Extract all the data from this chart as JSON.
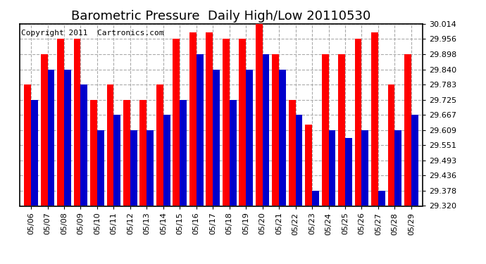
{
  "title": "Barometric Pressure  Daily High/Low 20110530",
  "copyright": "Copyright 2011  Cartronics.com",
  "dates": [
    "05/06",
    "05/07",
    "05/08",
    "05/09",
    "05/10",
    "05/11",
    "05/12",
    "05/13",
    "05/14",
    "05/15",
    "05/16",
    "05/17",
    "05/18",
    "05/19",
    "05/20",
    "05/21",
    "05/22",
    "05/23",
    "05/24",
    "05/25",
    "05/26",
    "05/27",
    "05/28",
    "05/29"
  ],
  "highs": [
    29.783,
    29.898,
    29.956,
    29.956,
    29.725,
    29.783,
    29.725,
    29.725,
    29.783,
    29.956,
    29.98,
    29.98,
    29.956,
    29.956,
    30.014,
    29.898,
    29.725,
    29.63,
    29.898,
    29.898,
    29.956,
    29.98,
    29.783,
    29.898
  ],
  "lows": [
    29.725,
    29.84,
    29.84,
    29.783,
    29.609,
    29.667,
    29.609,
    29.609,
    29.667,
    29.725,
    29.898,
    29.84,
    29.725,
    29.84,
    29.898,
    29.84,
    29.667,
    29.378,
    29.609,
    29.58,
    29.609,
    29.378,
    29.609,
    29.667
  ],
  "high_color": "#ff0000",
  "low_color": "#0000cc",
  "bg_color": "#ffffff",
  "grid_color": "#aaaaaa",
  "title_fontsize": 13,
  "copyright_fontsize": 8,
  "ymin": 29.32,
  "ymax": 30.014,
  "yticks": [
    29.32,
    29.378,
    29.436,
    29.493,
    29.551,
    29.609,
    29.667,
    29.725,
    29.783,
    29.84,
    29.898,
    29.956,
    30.014
  ]
}
